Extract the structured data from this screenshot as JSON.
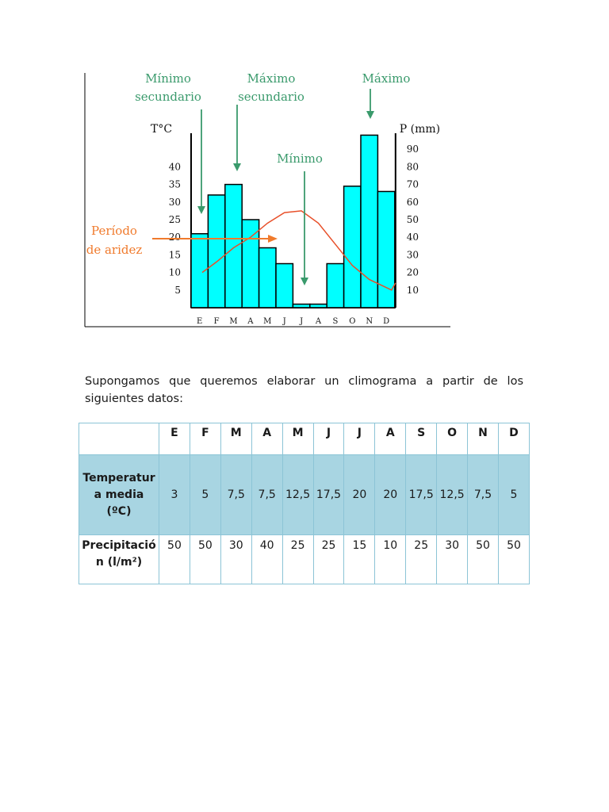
{
  "chart_data": {
    "type": "bar",
    "months": [
      "E",
      "F",
      "M",
      "A",
      "M",
      "J",
      "J",
      "A",
      "S",
      "O",
      "N",
      "D"
    ],
    "precipitation_mm": [
      42,
      64,
      70,
      50,
      34,
      25,
      2,
      2,
      25,
      69,
      98,
      66
    ],
    "temperature_c": [
      10,
      13,
      17,
      20,
      24,
      27,
      27.5,
      24,
      18,
      12,
      8,
      5
    ],
    "temp_axis": {
      "label": "T°C",
      "ticks": [
        5,
        10,
        15,
        20,
        25,
        30,
        35,
        40
      ]
    },
    "precip_axis": {
      "label": "P (mm)",
      "ticks": [
        10,
        20,
        30,
        40,
        50,
        60,
        70,
        80,
        90
      ]
    },
    "annotations": [
      {
        "key": "min_sec",
        "lines": [
          "Mínimo",
          "secundario"
        ],
        "month": 0
      },
      {
        "key": "max_sec",
        "lines": [
          "Máximo",
          "secundario"
        ],
        "month": 2
      },
      {
        "key": "min",
        "lines": [
          "Mínimo"
        ],
        "month": 6
      },
      {
        "key": "max",
        "lines": [
          "Máximo"
        ],
        "month": 10
      }
    ],
    "aridity_label": [
      "Período",
      "de aridez"
    ],
    "colors": {
      "bars": "#00ffff",
      "bar_stroke": "#000000",
      "temp_line": "#e8502a",
      "annotation": "#3a9a6c",
      "aridity": "#f07a2c"
    }
  },
  "intro_text": "Supongamos que queremos elaborar un climograma a partir de los siguientes datos:",
  "table": {
    "months": [
      "E",
      "F",
      "M",
      "A",
      "M",
      "J",
      "J",
      "A",
      "S",
      "O",
      "N",
      "D"
    ],
    "temperature_label": "Temperatura media (ºC)",
    "temperature": [
      "3",
      "5",
      "7,5",
      "7,5",
      "12,5",
      "17,5",
      "20",
      "20",
      "17,5",
      "12,5",
      "7,5",
      "5"
    ],
    "precipitation_label": "Precipitación (l/m²)",
    "precipitation": [
      "50",
      "50",
      "30",
      "40",
      "25",
      "25",
      "15",
      "10",
      "25",
      "30",
      "50",
      "50"
    ]
  }
}
